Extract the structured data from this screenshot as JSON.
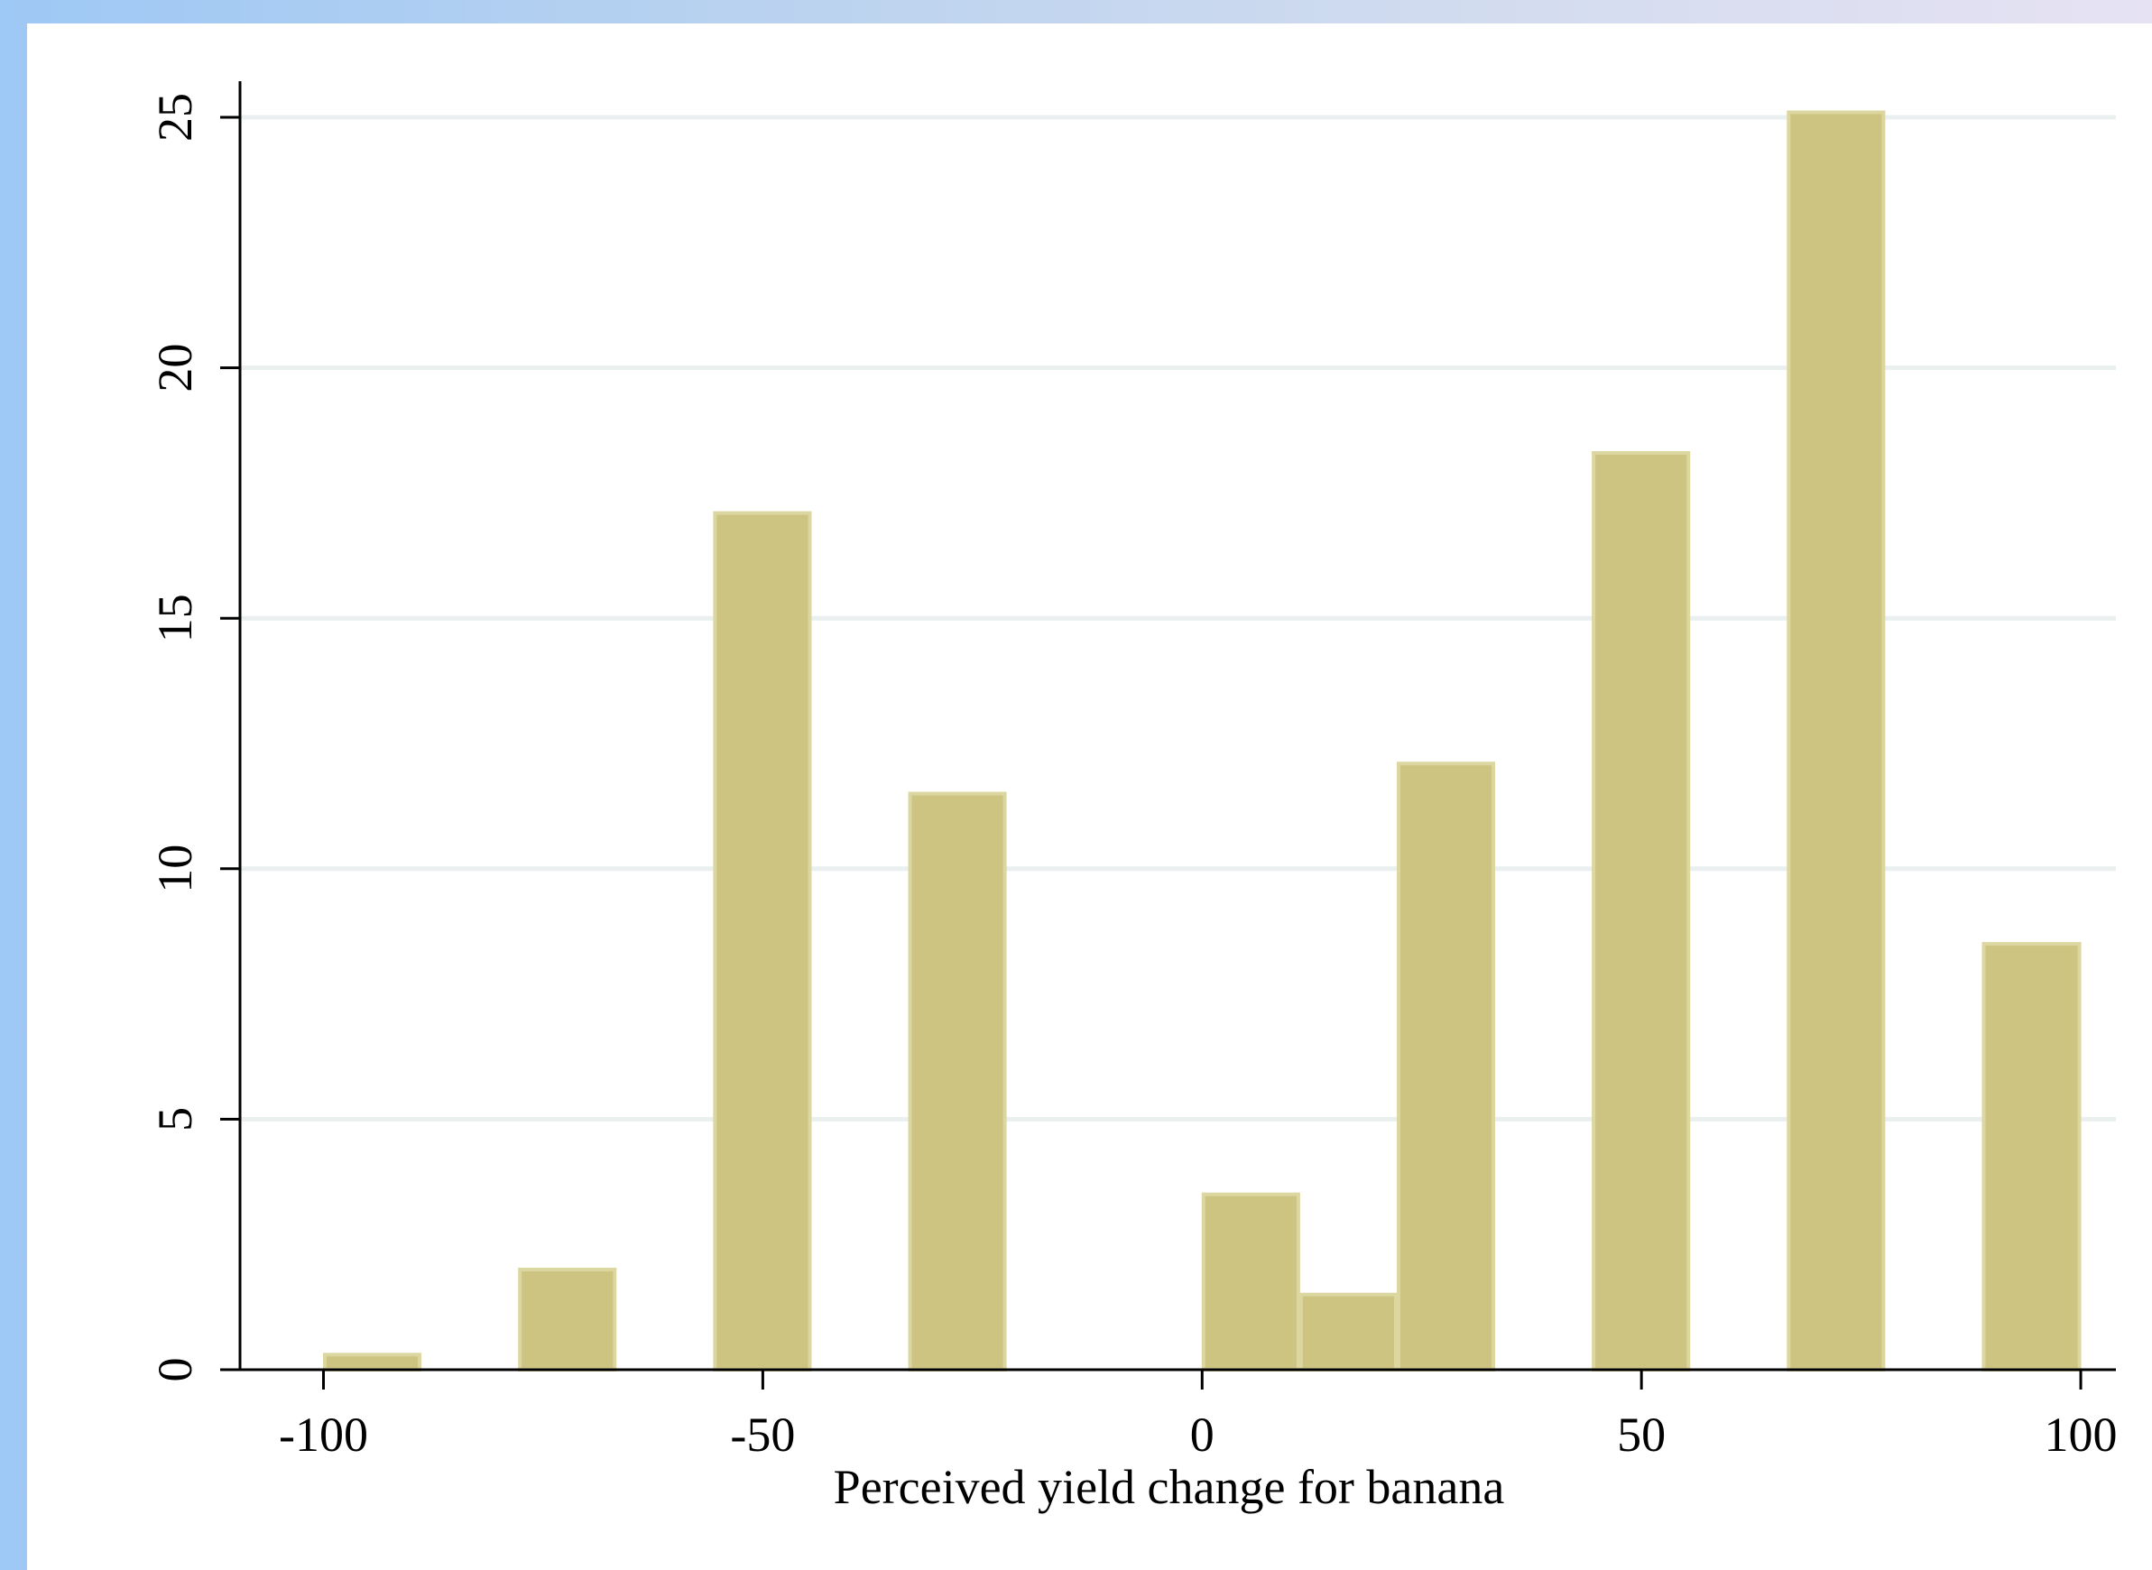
{
  "colors": {
    "bar_fill": "#cdc481",
    "bar_edge": "#dcd6a0",
    "gridline": "#e9f0ef",
    "axis": "#000000",
    "frame_left": "#9ec8f5",
    "frame_right": "#e6e2f3"
  },
  "chart_data": {
    "type": "bar",
    "histogram": true,
    "title": "",
    "xlabel": "Perceived yield change for banana",
    "ylabel": "",
    "xlim": [
      -109.5,
      104
    ],
    "ylim": [
      0,
      25
    ],
    "xticks": [
      -100,
      -50,
      0,
      50,
      100
    ],
    "xtick_labels": [
      "-100",
      "-50",
      "0",
      "50",
      "100"
    ],
    "yticks": [
      0,
      5,
      10,
      15,
      20,
      25
    ],
    "ytick_labels": [
      "0",
      "5",
      "10",
      "15",
      "20",
      "25"
    ],
    "grid": true,
    "bin_width": 11.1,
    "bins": [
      {
        "x_start": -100,
        "x_end": -88.9,
        "value": 0.3
      },
      {
        "x_start": -77.8,
        "x_end": -66.7,
        "value": 2.0
      },
      {
        "x_start": -55.6,
        "x_end": -44.5,
        "value": 17.1
      },
      {
        "x_start": -33.4,
        "x_end": -22.3,
        "value": 11.5
      },
      {
        "x_start": 0,
        "x_end": 11.1,
        "value": 3.5
      },
      {
        "x_start": 11.1,
        "x_end": 22.2,
        "value": 1.5
      },
      {
        "x_start": 22.2,
        "x_end": 33.3,
        "value": 12.1
      },
      {
        "x_start": 44.4,
        "x_end": 55.5,
        "value": 18.3
      },
      {
        "x_start": 66.6,
        "x_end": 77.7,
        "value": 25.1
      },
      {
        "x_start": 88.8,
        "x_end": 100,
        "value": 8.5
      }
    ]
  }
}
